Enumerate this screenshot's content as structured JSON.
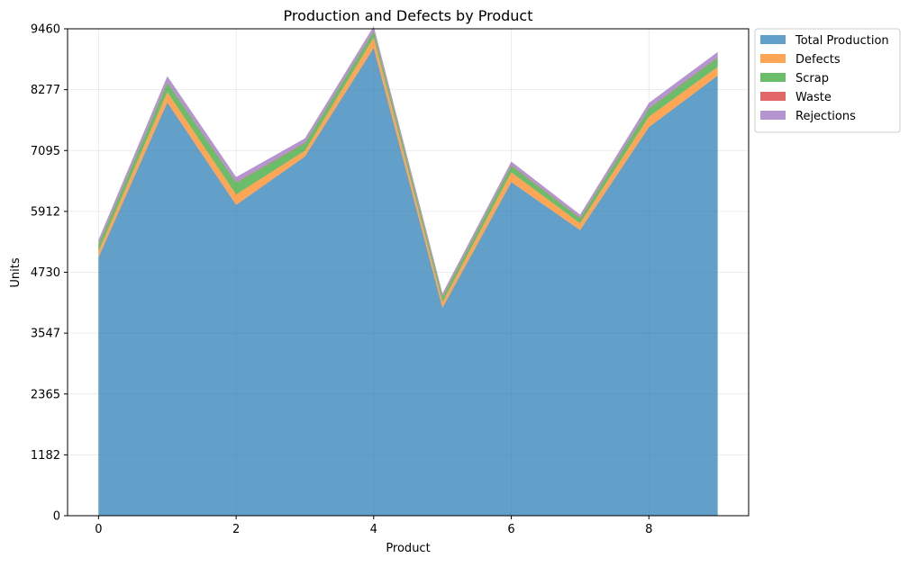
{
  "chart_data": {
    "type": "area",
    "stacked": true,
    "title": "Production and Defects by Product",
    "xlabel": "Product",
    "ylabel": "Units",
    "x": [
      0,
      1,
      2,
      3,
      4,
      5,
      6,
      7,
      8,
      9
    ],
    "xticks": [
      0,
      2,
      4,
      6,
      8
    ],
    "xlim": [
      -0.45,
      9.45
    ],
    "ylim": [
      0,
      9460
    ],
    "yticks": [
      0,
      1182,
      2365,
      3547,
      4730,
      5912,
      7095,
      8277,
      9460
    ],
    "grid": true,
    "legend_position": "outside-top-right",
    "series": [
      {
        "name": "Total Production",
        "color": "#1f77b4",
        "values": [
          5020,
          8030,
          6040,
          6980,
          9090,
          4040,
          6480,
          5550,
          7550,
          8550
        ]
      },
      {
        "name": "Defects",
        "color": "#ff7f0e",
        "values": [
          120,
          200,
          200,
          110,
          200,
          110,
          190,
          130,
          200,
          170
        ]
      },
      {
        "name": "Scrap",
        "color": "#2ca02c",
        "values": [
          130,
          180,
          230,
          150,
          120,
          100,
          130,
          100,
          160,
          180
        ]
      },
      {
        "name": "Waste",
        "color": "#d62728",
        "values": [
          10,
          10,
          10,
          10,
          10,
          10,
          10,
          10,
          10,
          10
        ]
      },
      {
        "name": "Rejections",
        "color": "#9467bd",
        "values": [
          80,
          120,
          100,
          80,
          90,
          60,
          70,
          60,
          100,
          100
        ]
      }
    ]
  }
}
